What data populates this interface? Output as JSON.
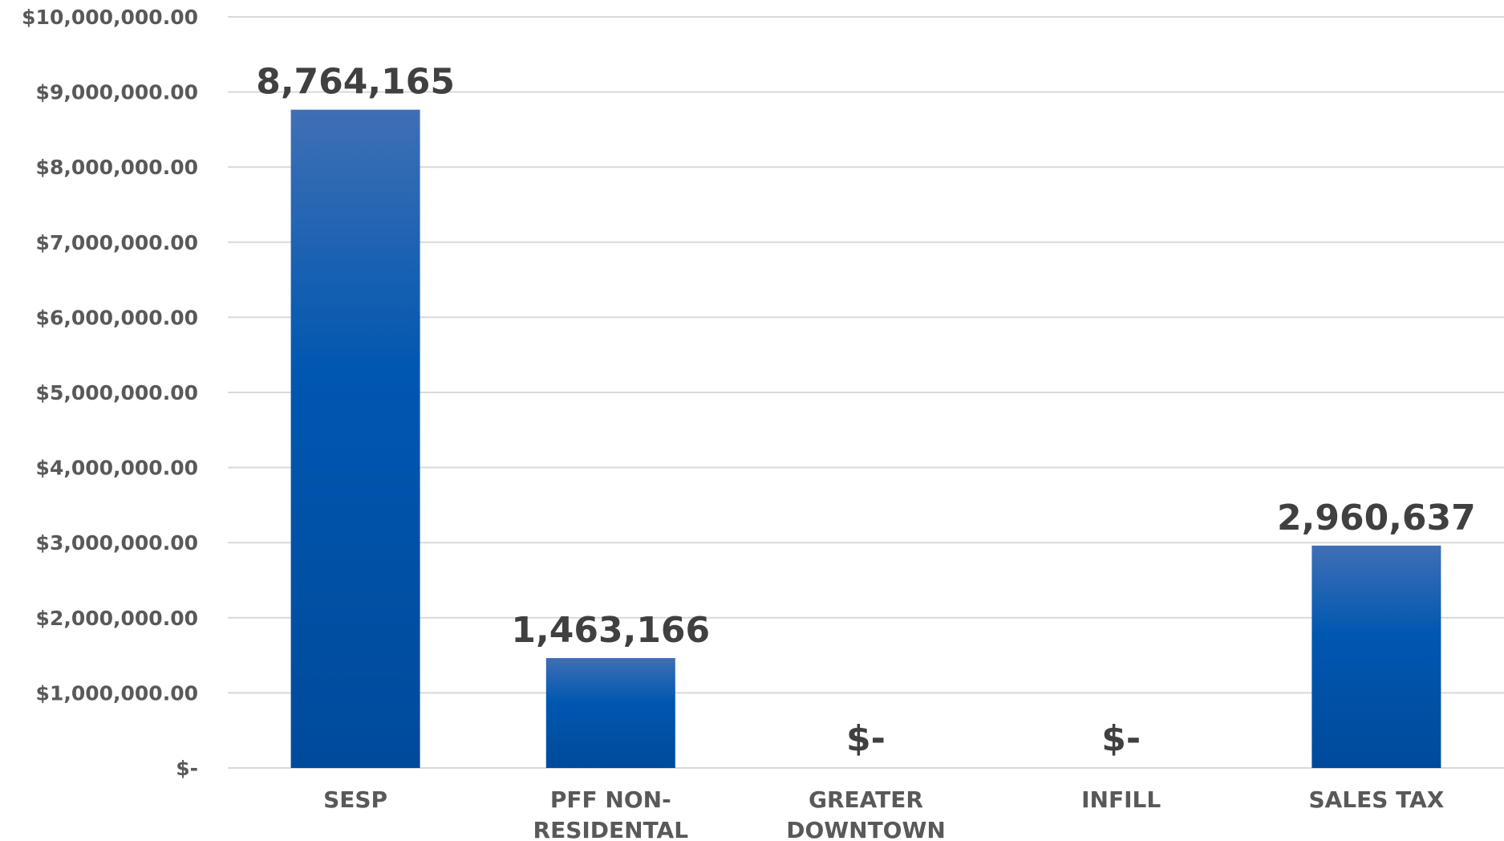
{
  "chart_data": {
    "type": "bar",
    "categories": [
      "SESP",
      "PFF NON-RESIDENTAL",
      "GREATER DOWNTOWN",
      "INFILL",
      "SALES TAX"
    ],
    "category_lines": [
      [
        "SESP"
      ],
      [
        "PFF NON-",
        "RESIDENTAL"
      ],
      [
        "GREATER",
        "DOWNTOWN"
      ],
      [
        "INFILL"
      ],
      [
        "SALES TAX"
      ]
    ],
    "values": [
      8764165,
      1463166,
      0,
      0,
      2960637
    ],
    "data_labels": [
      "8,764,165",
      "1,463,166",
      "$-",
      "$-",
      "2,960,637"
    ],
    "ylim": [
      0,
      10000000
    ],
    "yticks": [
      0,
      1000000,
      2000000,
      3000000,
      4000000,
      5000000,
      6000000,
      7000000,
      8000000,
      9000000,
      10000000
    ],
    "ytick_labels": [
      "$-",
      "$1,000,000.00",
      "$2,000,000.00",
      "$3,000,000.00",
      "$4,000,000.00",
      "$5,000,000.00",
      "$6,000,000.00",
      "$7,000,000.00",
      "$8,000,000.00",
      "$9,000,000.00",
      "$10,000,000.00"
    ],
    "title": "",
    "xlabel": "",
    "ylabel": "",
    "grid": true,
    "legend": "none",
    "colors": {
      "bar_top": "#3f6fb5",
      "bar_bottom": "#004a9c",
      "grid": "#d9d9d9",
      "axis_text": "#595959",
      "data_label_text": "#404040"
    }
  }
}
